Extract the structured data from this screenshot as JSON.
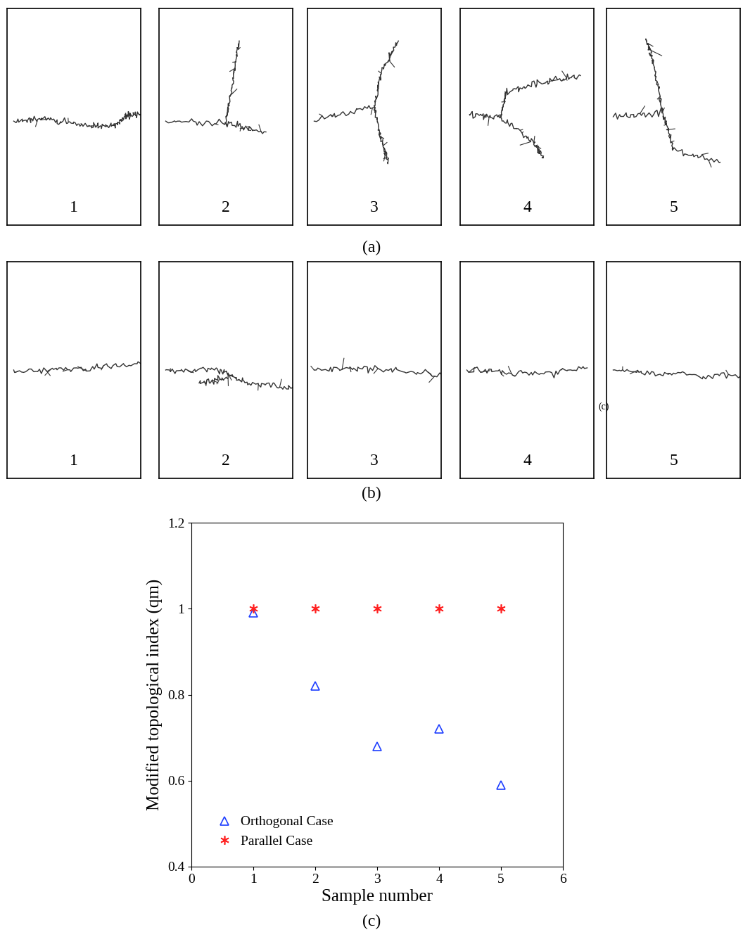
{
  "crack_panels": {
    "a": {
      "caption": "(a)",
      "samples": [
        "1",
        "2",
        "3",
        "4",
        "5"
      ]
    },
    "b": {
      "caption": "(b)",
      "samples": [
        "1",
        "2",
        "3",
        "4",
        "5"
      ],
      "stray_label": "(c)"
    }
  },
  "chart_data": {
    "type": "scatter",
    "caption": "(c)",
    "x_label": "Sample number",
    "y_label": "Modified topological index (qm)",
    "x": [
      1,
      2,
      3,
      4,
      5
    ],
    "series": [
      {
        "name": "Orthogonal Case",
        "color": "#1f3fff",
        "marker": "triangle",
        "values": [
          0.99,
          0.82,
          0.68,
          0.72,
          0.59
        ]
      },
      {
        "name": "Parallel Case",
        "color": "#ff2020",
        "marker": "asterisk",
        "values": [
          1,
          1,
          1,
          1,
          1
        ]
      }
    ],
    "xlim": [
      0,
      6
    ],
    "xticks": [
      0,
      1,
      2,
      3,
      4,
      5,
      6
    ],
    "ylim": [
      0.4,
      1.2
    ],
    "yticks": [
      0.4,
      0.6,
      0.8,
      1,
      1.2
    ],
    "legend": "lower left",
    "grid": false
  }
}
